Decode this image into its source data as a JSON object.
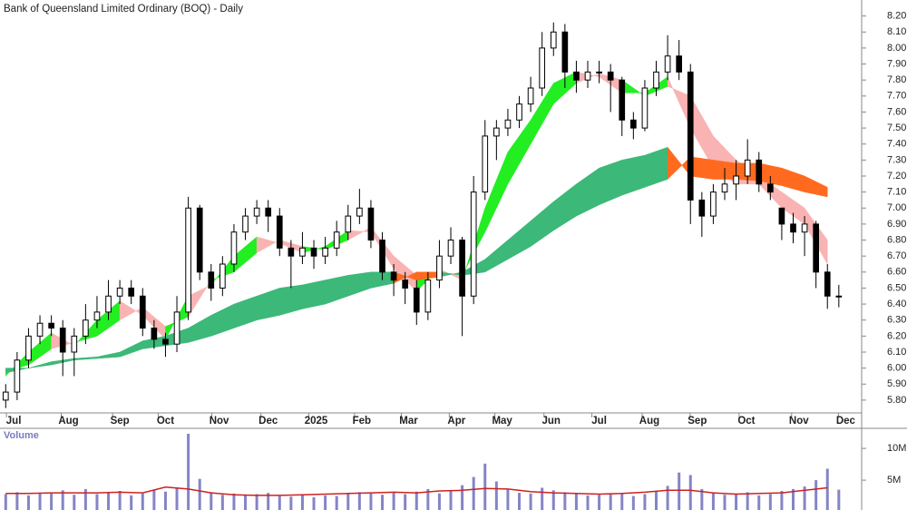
{
  "chart_data": [
    {
      "type": "candlestick",
      "title": "Bank of Queensland Limited Ordinary (BOQ) - Daily",
      "x": [
        0,
        1,
        2,
        3,
        4,
        5,
        6,
        7,
        8,
        9,
        10,
        11,
        12,
        13,
        14,
        15,
        16,
        17,
        18,
        19,
        20,
        21,
        22,
        23,
        24,
        25,
        26,
        27,
        28,
        29,
        30,
        31,
        32,
        33,
        34,
        35,
        36,
        37,
        38,
        39,
        40,
        41,
        42,
        43,
        44,
        45,
        46,
        47,
        48,
        49,
        50,
        51,
        52,
        53,
        54,
        55,
        56,
        57,
        58,
        59,
        60,
        61,
        62,
        63,
        64,
        65,
        66,
        67,
        68,
        69,
        70,
        71,
        72,
        73
      ],
      "open": [
        5.8,
        5.85,
        6.05,
        6.2,
        6.28,
        6.25,
        6.1,
        6.2,
        6.3,
        6.35,
        6.45,
        6.5,
        6.45,
        6.25,
        6.18,
        6.15,
        6.35,
        7.0,
        6.6,
        6.5,
        6.65,
        6.85,
        6.95,
        7.0,
        6.95,
        6.75,
        6.7,
        6.75,
        6.7,
        6.75,
        6.85,
        6.95,
        7.0,
        6.8,
        6.6,
        6.55,
        6.5,
        6.35,
        6.55,
        6.7,
        6.8,
        6.45,
        7.1,
        7.45,
        7.5,
        7.55,
        7.65,
        7.75,
        8.0,
        8.1,
        7.85,
        7.8,
        7.85,
        7.85,
        7.8,
        7.55,
        7.5,
        7.75,
        7.85,
        7.95,
        7.85,
        7.05,
        6.95,
        7.1,
        7.15,
        7.2,
        7.3,
        7.15,
        7.0,
        6.9,
        6.85,
        6.9,
        6.6,
        6.45
      ],
      "high": [
        5.9,
        6.1,
        6.25,
        6.33,
        6.33,
        6.3,
        6.25,
        6.4,
        6.45,
        6.55,
        6.55,
        6.55,
        6.5,
        6.3,
        6.22,
        6.45,
        7.07,
        7.02,
        6.65,
        6.7,
        6.9,
        7.0,
        7.05,
        7.05,
        7.0,
        6.8,
        6.85,
        6.8,
        6.82,
        6.92,
        7.02,
        7.12,
        7.05,
        6.85,
        6.65,
        6.6,
        6.55,
        6.6,
        6.8,
        6.88,
        6.82,
        7.2,
        7.55,
        7.55,
        7.62,
        7.7,
        7.82,
        8.1,
        8.16,
        8.15,
        7.92,
        7.92,
        7.92,
        7.9,
        7.82,
        7.6,
        7.8,
        7.92,
        8.08,
        8.05,
        7.9,
        7.1,
        7.15,
        7.25,
        7.3,
        7.43,
        7.35,
        7.2,
        7.0,
        6.97,
        6.95,
        6.92,
        6.65,
        6.52
      ],
      "low": [
        5.75,
        5.8,
        6.0,
        6.15,
        6.2,
        5.95,
        5.95,
        6.15,
        6.25,
        6.3,
        6.4,
        6.4,
        6.2,
        6.12,
        6.07,
        6.1,
        6.3,
        6.55,
        6.42,
        6.45,
        6.6,
        6.8,
        6.9,
        6.85,
        6.7,
        6.5,
        6.65,
        6.62,
        6.65,
        6.7,
        6.8,
        6.9,
        6.75,
        6.55,
        6.45,
        6.4,
        6.27,
        6.3,
        6.5,
        6.65,
        6.2,
        6.4,
        7.05,
        7.3,
        7.45,
        7.5,
        7.6,
        7.7,
        7.95,
        7.75,
        7.72,
        7.75,
        7.78,
        7.6,
        7.45,
        7.43,
        7.48,
        7.7,
        7.8,
        7.8,
        6.9,
        6.82,
        6.9,
        7.05,
        7.05,
        7.15,
        7.1,
        7.05,
        6.8,
        6.78,
        6.7,
        6.5,
        6.37,
        6.38
      ],
      "close": [
        5.85,
        6.05,
        6.2,
        6.28,
        6.25,
        6.1,
        6.2,
        6.3,
        6.35,
        6.45,
        6.5,
        6.45,
        6.25,
        6.18,
        6.15,
        6.35,
        7.0,
        6.6,
        6.5,
        6.65,
        6.85,
        6.95,
        7.0,
        6.95,
        6.75,
        6.7,
        6.75,
        6.7,
        6.75,
        6.85,
        6.95,
        7.0,
        6.8,
        6.6,
        6.55,
        6.5,
        6.35,
        6.55,
        6.7,
        6.8,
        6.45,
        7.1,
        7.45,
        7.5,
        7.55,
        7.65,
        7.75,
        8.0,
        8.1,
        7.85,
        7.8,
        7.85,
        7.85,
        7.8,
        7.55,
        7.5,
        7.75,
        7.85,
        7.95,
        7.85,
        7.05,
        6.95,
        7.1,
        7.15,
        7.2,
        7.3,
        7.15,
        7.1,
        6.9,
        6.85,
        6.9,
        6.6,
        6.45,
        6.45
      ],
      "color": "#000000",
      "ribbons": [
        {
          "x": [
            0,
            2,
            4,
            6,
            8,
            10,
            12,
            14,
            16,
            18,
            20,
            22,
            24,
            26,
            28,
            30,
            32,
            34,
            36,
            38,
            40,
            42,
            44,
            46,
            48,
            50,
            52,
            54,
            56,
            58,
            60,
            62,
            64,
            66,
            68,
            70,
            72
          ],
          "fast": [
            5.95,
            6.1,
            6.22,
            6.14,
            6.3,
            6.42,
            6.33,
            6.18,
            6.45,
            6.52,
            6.7,
            6.82,
            6.78,
            6.72,
            6.76,
            6.86,
            6.85,
            6.62,
            6.48,
            6.62,
            6.55,
            7.0,
            7.35,
            7.55,
            7.78,
            7.85,
            7.82,
            7.72,
            7.72,
            7.82,
            7.5,
            7.25,
            7.15,
            7.15,
            7.0,
            6.9,
            6.65
          ],
          "slow": [
            5.98,
            6.02,
            6.12,
            6.16,
            6.2,
            6.3,
            6.38,
            6.26,
            6.32,
            6.55,
            6.6,
            6.72,
            6.8,
            6.76,
            6.74,
            6.8,
            6.88,
            6.7,
            6.58,
            6.6,
            6.58,
            6.85,
            7.15,
            7.4,
            7.65,
            7.78,
            7.84,
            7.8,
            7.7,
            7.76,
            7.7,
            7.45,
            7.3,
            7.2,
            7.1,
            7.0,
            6.8
          ],
          "up_color": "#22ee22",
          "down_color": "#f9b3b3"
        },
        {
          "x": [
            0,
            2,
            4,
            6,
            8,
            10,
            12,
            14,
            16,
            18,
            20,
            22,
            24,
            26,
            28,
            30,
            32,
            34,
            36,
            38,
            40,
            42,
            44,
            46,
            48,
            50,
            52,
            54,
            56,
            58,
            60,
            62,
            64,
            66,
            68,
            70,
            72
          ],
          "fast": [
            5.97,
            6.0,
            6.04,
            6.06,
            6.07,
            6.1,
            6.17,
            6.2,
            6.25,
            6.33,
            6.4,
            6.45,
            6.5,
            6.52,
            6.55,
            6.58,
            6.6,
            6.6,
            6.55,
            6.57,
            6.6,
            6.68,
            6.8,
            6.92,
            7.04,
            7.15,
            7.25,
            7.3,
            7.33,
            7.38,
            7.2,
            7.18,
            7.18,
            7.17,
            7.14,
            7.1,
            7.07
          ],
          "slow": [
            6.0,
            6.0,
            6.02,
            6.05,
            6.06,
            6.07,
            6.12,
            6.14,
            6.16,
            6.2,
            6.25,
            6.3,
            6.33,
            6.37,
            6.4,
            6.45,
            6.5,
            6.53,
            6.6,
            6.6,
            6.58,
            6.6,
            6.68,
            6.76,
            6.86,
            6.95,
            7.02,
            7.08,
            7.13,
            7.18,
            7.32,
            7.3,
            7.28,
            7.28,
            7.25,
            7.2,
            7.13
          ],
          "up_color": "#3cb878",
          "down_color": "#ff6a1f"
        }
      ],
      "xlim": [
        -0.5,
        75
      ],
      "xticks": [
        {
          "value": 0.7,
          "label": "Jul"
        },
        {
          "value": 5.5,
          "label": "Aug"
        },
        {
          "value": 10,
          "label": "Sep"
        },
        {
          "value": 14,
          "label": "Oct"
        },
        {
          "value": 18.7,
          "label": "Nov"
        },
        {
          "value": 23,
          "label": "Dec"
        },
        {
          "value": 27.2,
          "label": "2025"
        },
        {
          "value": 31.2,
          "label": "Feb"
        },
        {
          "value": 35.3,
          "label": "Mar"
        },
        {
          "value": 39.5,
          "label": "Apr"
        },
        {
          "value": 43.5,
          "label": "May"
        },
        {
          "value": 47.8,
          "label": "Jun"
        },
        {
          "value": 52,
          "label": "Jul"
        },
        {
          "value": 56.4,
          "label": "Aug"
        },
        {
          "value": 60.6,
          "label": "Sep"
        },
        {
          "value": 64.9,
          "label": "Oct"
        },
        {
          "value": 69.5,
          "label": "Nov"
        },
        {
          "value": 73.6,
          "label": "Dec"
        }
      ],
      "ylim": [
        5.72,
        8.3
      ],
      "yticks": [
        {
          "value": 5.8,
          "label": "5.80"
        },
        {
          "value": 5.9,
          "label": "5.90"
        },
        {
          "value": 6.0,
          "label": "6.00"
        },
        {
          "value": 6.1,
          "label": "6.10"
        },
        {
          "value": 6.2,
          "label": "6.20"
        },
        {
          "value": 6.3,
          "label": "6.30"
        },
        {
          "value": 6.4,
          "label": "6.40"
        },
        {
          "value": 6.5,
          "label": "6.50"
        },
        {
          "value": 6.6,
          "label": "6.60"
        },
        {
          "value": 6.7,
          "label": "6.70"
        },
        {
          "value": 6.8,
          "label": "6.80"
        },
        {
          "value": 6.9,
          "label": "6.90"
        },
        {
          "value": 7.0,
          "label": "7.00"
        },
        {
          "value": 7.1,
          "label": "7.10"
        },
        {
          "value": 7.2,
          "label": "7.20"
        },
        {
          "value": 7.3,
          "label": "7.30"
        },
        {
          "value": 7.4,
          "label": "7.40"
        },
        {
          "value": 7.5,
          "label": "7.50"
        },
        {
          "value": 7.6,
          "label": "7.60"
        },
        {
          "value": 7.7,
          "label": "7.70"
        },
        {
          "value": 7.8,
          "label": "7.80"
        },
        {
          "value": 7.9,
          "label": "7.90"
        },
        {
          "value": 8.0,
          "label": "8.00"
        },
        {
          "value": 8.1,
          "label": "8.10"
        },
        {
          "value": 8.2,
          "label": "8.20"
        }
      ]
    },
    {
      "type": "bar",
      "title": "Volume",
      "x": [
        0,
        1,
        2,
        3,
        4,
        5,
        6,
        7,
        8,
        9,
        10,
        11,
        12,
        13,
        14,
        15,
        16,
        17,
        18,
        19,
        20,
        21,
        22,
        23,
        24,
        25,
        26,
        27,
        28,
        29,
        30,
        31,
        32,
        33,
        34,
        35,
        36,
        37,
        38,
        39,
        40,
        41,
        42,
        43,
        44,
        45,
        46,
        47,
        48,
        49,
        50,
        51,
        52,
        53,
        54,
        55,
        56,
        57,
        58,
        59,
        60,
        61,
        62,
        63,
        64,
        65,
        66,
        67,
        68,
        69,
        70,
        71,
        72,
        73
      ],
      "values": [
        2800000,
        3100000,
        2600000,
        3000000,
        2900000,
        3400000,
        2700000,
        3600000,
        2800000,
        3000000,
        3300000,
        2600000,
        2900000,
        3500000,
        3200000,
        3800000,
        12300000,
        5200000,
        3100000,
        2700000,
        2900000,
        2600000,
        2800000,
        3000000,
        2500000,
        2400000,
        2700000,
        2300000,
        2600000,
        2500000,
        2800000,
        3100000,
        2900000,
        2700000,
        3000000,
        2800000,
        3200000,
        3600000,
        2900000,
        3400000,
        4200000,
        5500000,
        7600000,
        4800000,
        3500000,
        3000000,
        2900000,
        3800000,
        3400000,
        3100000,
        2800000,
        2600000,
        2700000,
        2900000,
        3000000,
        2500000,
        2800000,
        3200000,
        4100000,
        6200000,
        5800000,
        3600000,
        3000000,
        2700000,
        2900000,
        3100000,
        2600000,
        2800000,
        3300000,
        3600000,
        4000000,
        5000000,
        6800000,
        3500000
      ],
      "color": "#8484c8",
      "ma": {
        "x": [
          0,
          2,
          4,
          6,
          8,
          10,
          12,
          14,
          16,
          18,
          20,
          22,
          24,
          26,
          28,
          30,
          32,
          34,
          36,
          38,
          40,
          42,
          44,
          46,
          48,
          50,
          52,
          54,
          56,
          58,
          60,
          62,
          64,
          66,
          68,
          70,
          72
        ],
        "values": [
          2900000,
          2900000,
          3000000,
          3000000,
          3000000,
          3100000,
          3000000,
          3900000,
          3600000,
          3000000,
          2700000,
          2600000,
          2600000,
          2700000,
          2800000,
          2900000,
          3000000,
          3100000,
          3000000,
          3300000,
          3400000,
          3700000,
          3600000,
          3200000,
          3000000,
          2900000,
          2800000,
          2900000,
          3100000,
          3400000,
          3400000,
          3000000,
          2800000,
          2900000,
          3000000,
          3400000,
          3800000
        ],
        "color": "#cc2222"
      },
      "xlim": [
        -0.5,
        75
      ],
      "ylim": [
        300000,
        12300000
      ],
      "yticks": [
        {
          "value": 5000000,
          "label": "5M"
        },
        {
          "value": 10000000,
          "label": "10M"
        }
      ]
    }
  ]
}
